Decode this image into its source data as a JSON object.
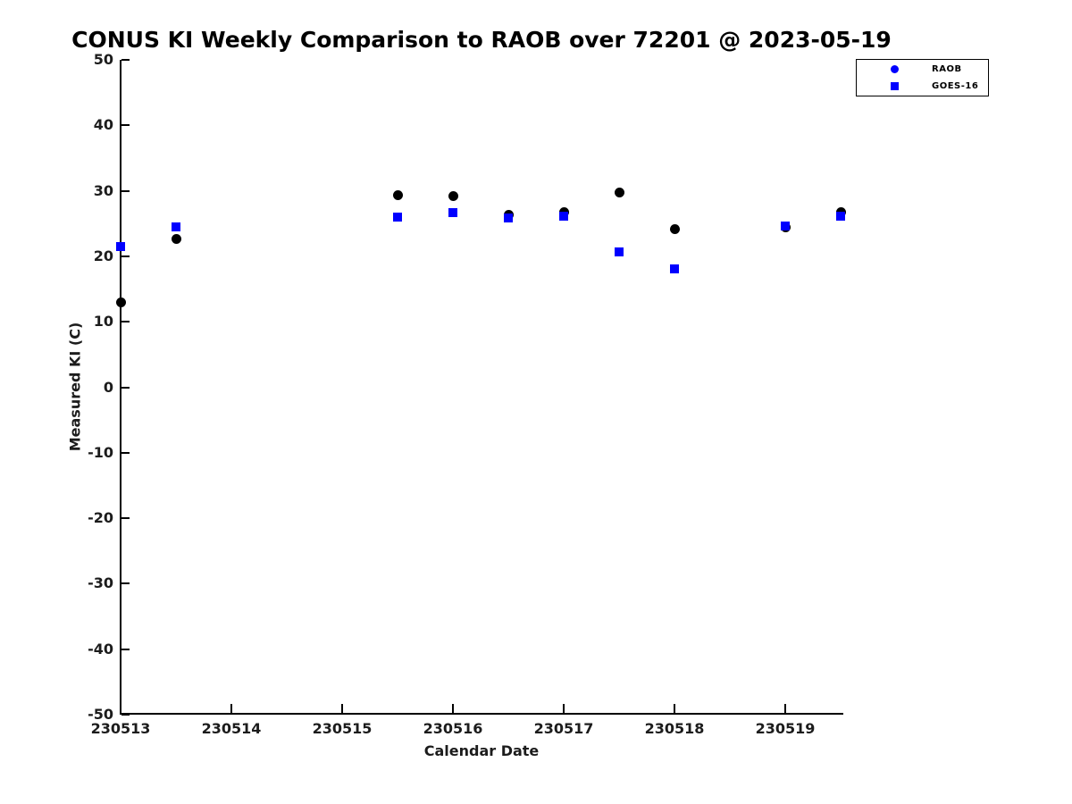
{
  "chart_data": {
    "type": "scatter",
    "title": "CONUS KI Weekly Comparison to RAOB over 72201 @ 2023-05-19",
    "xlabel": "Calendar Date",
    "ylabel": "Measured KI (C)",
    "xlim": [
      230513,
      230519.516
    ],
    "ylim": [
      -50,
      50
    ],
    "x_ticks": [
      230513,
      230514,
      230515,
      230516,
      230517,
      230518,
      230519
    ],
    "y_ticks": [
      50,
      40,
      30,
      20,
      10,
      0,
      -10,
      -20,
      -30,
      -40,
      -50
    ],
    "grid": false,
    "legend_position": "top-right-outside",
    "x": [
      230513,
      230513.5,
      230515.5,
      230516,
      230516.5,
      230517,
      230517.5,
      230518,
      230519,
      230519.5
    ],
    "series": [
      {
        "name": "RAOB",
        "marker": "circle",
        "color": "#000000",
        "legend_color": "#0000ff",
        "values": [
          13.0,
          22.7,
          29.3,
          29.2,
          26.3,
          26.8,
          29.8,
          24.1,
          24.4,
          26.7
        ]
      },
      {
        "name": "GOES-16",
        "marker": "square",
        "color": "#0000ff",
        "legend_color": "#0000ff",
        "values": [
          21.5,
          24.5,
          26.0,
          26.7,
          25.8,
          26.1,
          20.7,
          18.1,
          24.6,
          26.1
        ]
      }
    ]
  },
  "colors": {
    "axis": "#000000",
    "tick_label": "#1c1c1c",
    "background": "#ffffff"
  }
}
